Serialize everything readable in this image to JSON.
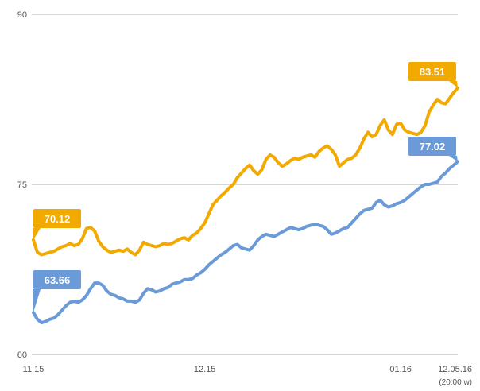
{
  "chart_data": {
    "type": "line",
    "title": "",
    "xlabel": "",
    "ylabel": "",
    "ylim": [
      60,
      90
    ],
    "yticks": [
      {
        "value": 90,
        "label": "90"
      },
      {
        "value": 75,
        "label": "75"
      },
      {
        "value": 60,
        "label": "60"
      }
    ],
    "xticks": [
      {
        "index": 0,
        "label": "11.15"
      },
      {
        "index": 42,
        "label": "12.15"
      },
      {
        "index": 90,
        "label": "01.16"
      },
      {
        "index": 104,
        "label": "12.05.16"
      }
    ],
    "last_update_label": "(20:00 w)",
    "grid": true,
    "legend": "none",
    "series": [
      {
        "color": "#f2a900",
        "start_label": "70.12",
        "end_label": "83.51",
        "values": [
          70.1,
          69.0,
          68.8,
          68.9,
          69.0,
          69.1,
          69.3,
          69.5,
          69.6,
          69.8,
          69.6,
          69.7,
          70.2,
          71.1,
          71.2,
          70.9,
          70.0,
          69.5,
          69.2,
          69.0,
          69.1,
          69.2,
          69.1,
          69.3,
          69.0,
          68.8,
          69.2,
          69.9,
          69.7,
          69.6,
          69.5,
          69.6,
          69.8,
          69.7,
          69.8,
          70.0,
          70.2,
          70.3,
          70.1,
          70.5,
          70.7,
          71.1,
          71.6,
          72.4,
          73.2,
          73.6,
          74.0,
          74.3,
          74.7,
          75.0,
          75.6,
          76.0,
          76.4,
          76.7,
          76.2,
          75.9,
          76.3,
          77.2,
          77.6,
          77.4,
          76.9,
          76.6,
          76.8,
          77.1,
          77.3,
          77.2,
          77.4,
          77.5,
          77.6,
          77.4,
          77.9,
          78.2,
          78.4,
          78.1,
          77.6,
          76.6,
          76.9,
          77.2,
          77.3,
          77.6,
          78.2,
          79.0,
          79.6,
          79.2,
          79.4,
          80.2,
          80.7,
          79.8,
          79.4,
          80.3,
          80.4,
          79.8,
          79.6,
          79.5,
          79.4,
          79.6,
          80.2,
          81.4,
          82.0,
          82.5,
          82.2,
          82.1,
          82.6,
          83.1,
          83.5
        ]
      },
      {
        "color": "#6a9bd8",
        "start_label": "63.66",
        "end_label": "77.02",
        "values": [
          63.7,
          63.1,
          62.8,
          62.9,
          63.1,
          63.2,
          63.5,
          63.9,
          64.3,
          64.6,
          64.7,
          64.6,
          64.8,
          65.2,
          65.8,
          66.3,
          66.3,
          66.1,
          65.6,
          65.3,
          65.2,
          65.0,
          64.9,
          64.7,
          64.7,
          64.6,
          64.8,
          65.4,
          65.8,
          65.7,
          65.5,
          65.6,
          65.8,
          65.9,
          66.2,
          66.3,
          66.4,
          66.6,
          66.6,
          66.7,
          67.0,
          67.2,
          67.5,
          67.9,
          68.2,
          68.5,
          68.8,
          69.0,
          69.3,
          69.6,
          69.7,
          69.4,
          69.3,
          69.2,
          69.6,
          70.1,
          70.4,
          70.6,
          70.5,
          70.4,
          70.6,
          70.8,
          71.0,
          71.2,
          71.1,
          71.0,
          71.1,
          71.3,
          71.4,
          71.5,
          71.4,
          71.3,
          71.0,
          70.6,
          70.7,
          70.9,
          71.1,
          71.2,
          71.6,
          72.0,
          72.4,
          72.7,
          72.8,
          72.9,
          73.4,
          73.6,
          73.2,
          73.0,
          73.1,
          73.3,
          73.4,
          73.6,
          73.9,
          74.2,
          74.5,
          74.8,
          75.0,
          75.0,
          75.1,
          75.2,
          75.7,
          76.0,
          76.4,
          76.7,
          77.0
        ]
      }
    ]
  },
  "colors": {
    "gold": "#f2a900",
    "blue": "#6a9bd8",
    "grid": "#c8c8c8",
    "tick": "#555555"
  }
}
